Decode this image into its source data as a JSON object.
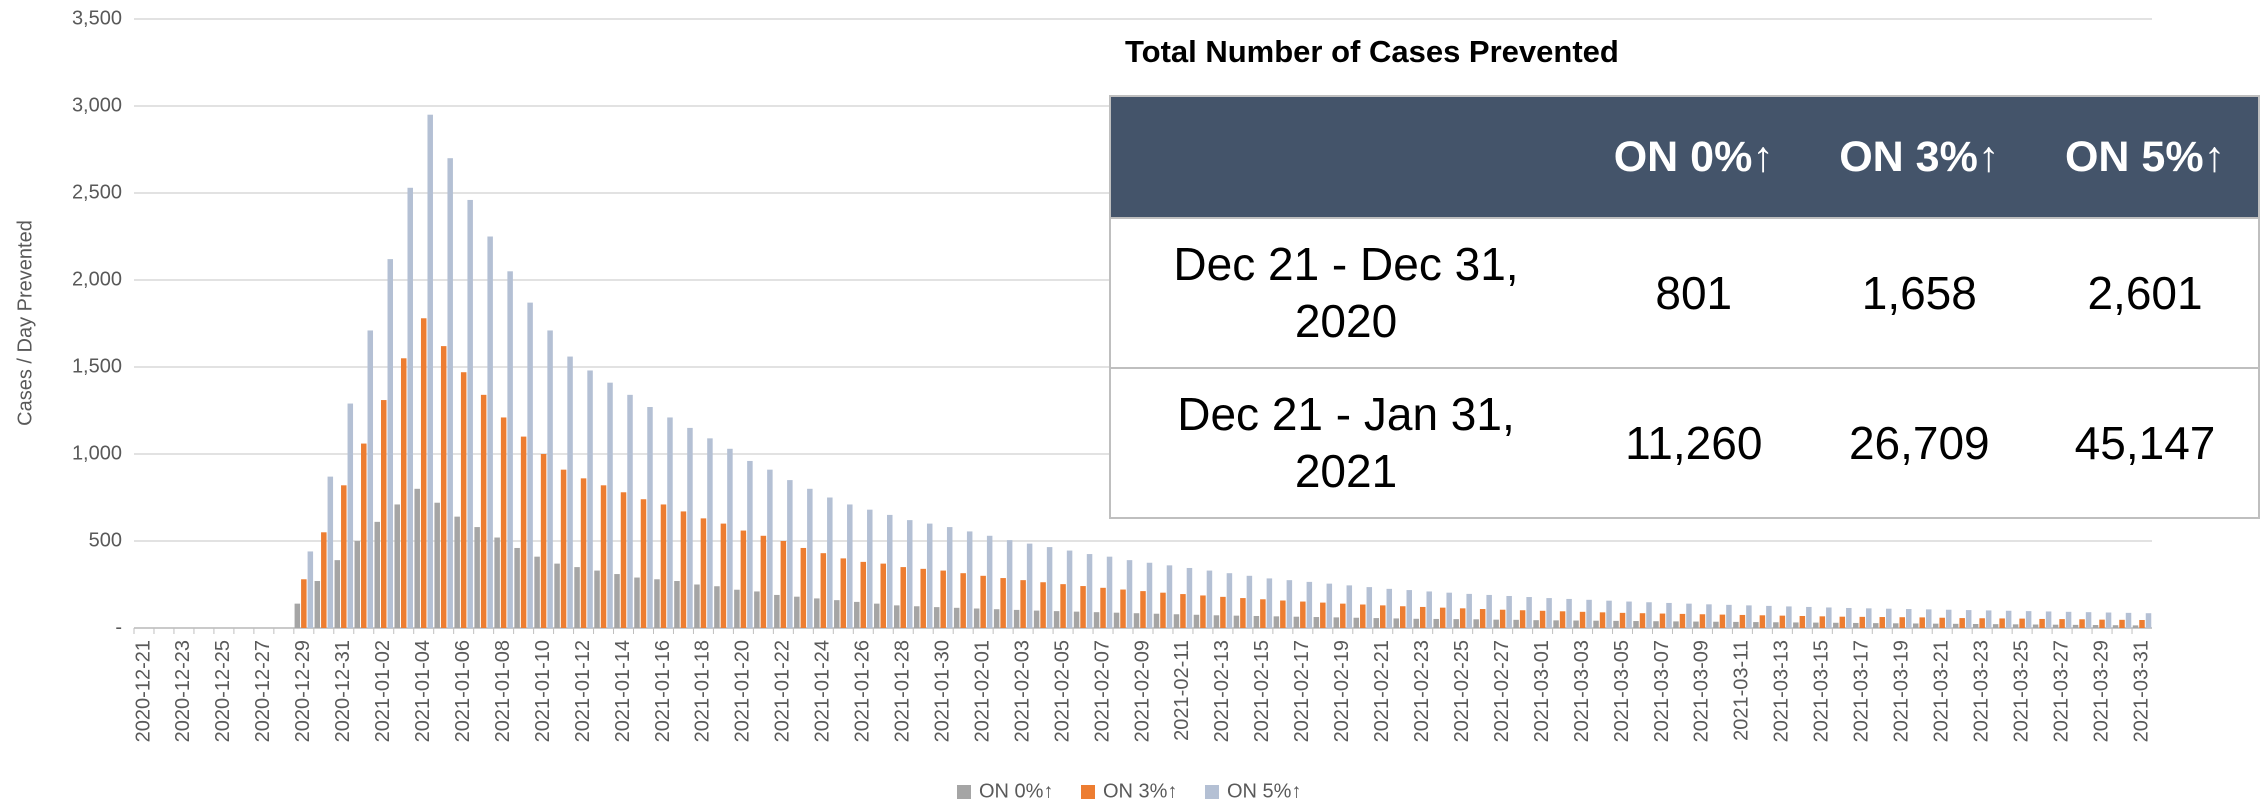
{
  "chart_data": {
    "type": "bar",
    "ylabel": "Cases / Day Prevented",
    "categories": [
      "2020-12-21",
      null,
      "2020-12-23",
      null,
      "2020-12-25",
      null,
      "2020-12-27",
      null,
      "2020-12-29",
      null,
      "2020-12-31",
      null,
      "2021-01-02",
      null,
      "2021-01-04",
      null,
      "2021-01-06",
      null,
      "2021-01-08",
      null,
      "2021-01-10",
      null,
      "2021-01-12",
      null,
      "2021-01-14",
      null,
      "2021-01-16",
      null,
      "2021-01-18",
      null,
      "2021-01-20",
      null,
      "2021-01-22",
      null,
      "2021-01-24",
      null,
      "2021-01-26",
      null,
      "2021-01-28",
      null,
      "2021-01-30",
      null,
      "2021-02-01",
      null,
      "2021-02-03",
      null,
      "2021-02-05",
      null,
      "2021-02-07",
      null,
      "2021-02-09",
      null,
      "2021-02-11",
      null,
      "2021-02-13",
      null,
      "2021-02-15",
      null,
      "2021-02-17",
      null,
      "2021-02-19",
      null,
      "2021-02-21",
      null,
      "2021-02-23",
      null,
      "2021-02-25",
      null,
      "2021-02-27",
      null,
      "2021-03-01",
      null,
      "2021-03-03",
      null,
      "2021-03-05",
      null,
      "2021-03-07",
      null,
      "2021-03-09",
      null,
      "2021-03-11",
      null,
      "2021-03-13",
      null,
      "2021-03-15",
      null,
      "2021-03-17",
      null,
      "2021-03-19",
      null,
      "2021-03-21",
      null,
      "2021-03-23",
      null,
      "2021-03-25",
      null,
      "2021-03-27",
      null,
      "2021-03-29",
      null,
      "2021-03-31"
    ],
    "series": [
      {
        "name": "ON 0%↑",
        "color": "#a5a5a5",
        "values": [
          0,
          0,
          0,
          0,
          0,
          0,
          0,
          0,
          140,
          270,
          390,
          500,
          610,
          710,
          800,
          720,
          640,
          580,
          520,
          460,
          410,
          370,
          350,
          330,
          310,
          290,
          280,
          270,
          250,
          240,
          220,
          210,
          190,
          180,
          170,
          160,
          150,
          140,
          130,
          125,
          120,
          116,
          112,
          108,
          104,
          100,
          97,
          94,
          91,
          88,
          85,
          82,
          79,
          76,
          73,
          71,
          69,
          67,
          65,
          63,
          61,
          59,
          57,
          55,
          53,
          52,
          51,
          50,
          48,
          47,
          45,
          44,
          43,
          42,
          41,
          40,
          39,
          38,
          37,
          36,
          35,
          34,
          33,
          32,
          31,
          30,
          29,
          28,
          27,
          26,
          25,
          24,
          23,
          22,
          21,
          20,
          19,
          18,
          17,
          16,
          15
        ]
      },
      {
        "name": "ON 3%↑",
        "color": "#ed7d31",
        "values": [
          0,
          0,
          0,
          0,
          0,
          0,
          0,
          0,
          280,
          550,
          820,
          1060,
          1310,
          1550,
          1780,
          1620,
          1470,
          1340,
          1210,
          1100,
          1000,
          910,
          860,
          820,
          780,
          740,
          710,
          670,
          630,
          600,
          560,
          530,
          500,
          460,
          430,
          400,
          380,
          370,
          350,
          340,
          330,
          315,
          300,
          287,
          275,
          263,
          252,
          241,
          231,
          221,
          212,
          203,
          195,
          187,
          179,
          172,
          165,
          158,
          152,
          146,
          140,
          135,
          130,
          125,
          121,
          117,
          113,
          109,
          105,
          102,
          99,
          96,
          93,
          90,
          87,
          85,
          83,
          81,
          79,
          77,
          75,
          73,
          71,
          69,
          67,
          65,
          64,
          63,
          62,
          61,
          59,
          57,
          56,
          55,
          54,
          52,
          51,
          50,
          48,
          47,
          46
        ]
      },
      {
        "name": "ON 5%↑",
        "color": "#b4c0d4",
        "values": [
          0,
          0,
          0,
          0,
          0,
          0,
          0,
          0,
          440,
          870,
          1290,
          1710,
          2120,
          2530,
          2950,
          2700,
          2460,
          2250,
          2050,
          1870,
          1710,
          1560,
          1480,
          1410,
          1340,
          1270,
          1210,
          1150,
          1090,
          1030,
          960,
          910,
          850,
          800,
          750,
          710,
          680,
          650,
          620,
          600,
          580,
          555,
          530,
          505,
          485,
          465,
          445,
          425,
          410,
          390,
          375,
          360,
          345,
          330,
          315,
          300,
          285,
          275,
          265,
          255,
          245,
          235,
          225,
          218,
          210,
          203,
          196,
          190,
          184,
          178,
          172,
          167,
          162,
          157,
          152,
          148,
          144,
          140,
          136,
          133,
          130,
          127,
          124,
          121,
          118,
          115,
          113,
          111,
          109,
          107,
          105,
          103,
          101,
          99,
          97,
          95,
          93,
          91,
          89,
          87,
          85
        ]
      }
    ],
    "ylim": [
      0,
      3500
    ],
    "yticks": [
      {
        "value": 0,
        "label": "-"
      },
      500,
      {
        "value": 1000,
        "label": "1,000"
      },
      {
        "value": 1500,
        "label": "1,500"
      },
      {
        "value": 2000,
        "label": "2,000"
      },
      {
        "value": 2500,
        "label": "2,500"
      },
      {
        "value": 3000,
        "label": "3,000"
      },
      {
        "value": 3500,
        "label": "3,500"
      }
    ],
    "grid": true,
    "legend": "bottom"
  },
  "table": {
    "title": "Total Number of Cases Prevented",
    "header": [
      "ON 0%↑",
      "ON 3%↑",
      "ON 5%↑"
    ],
    "rows": [
      {
        "label": "Dec 21 - Dec 31, 2020",
        "values": [
          "801",
          "1,658",
          "2,601"
        ]
      },
      {
        "label": "Dec 21 - Jan 31, 2021",
        "values": [
          "11,260",
          "26,709",
          "45,147"
        ]
      }
    ]
  }
}
